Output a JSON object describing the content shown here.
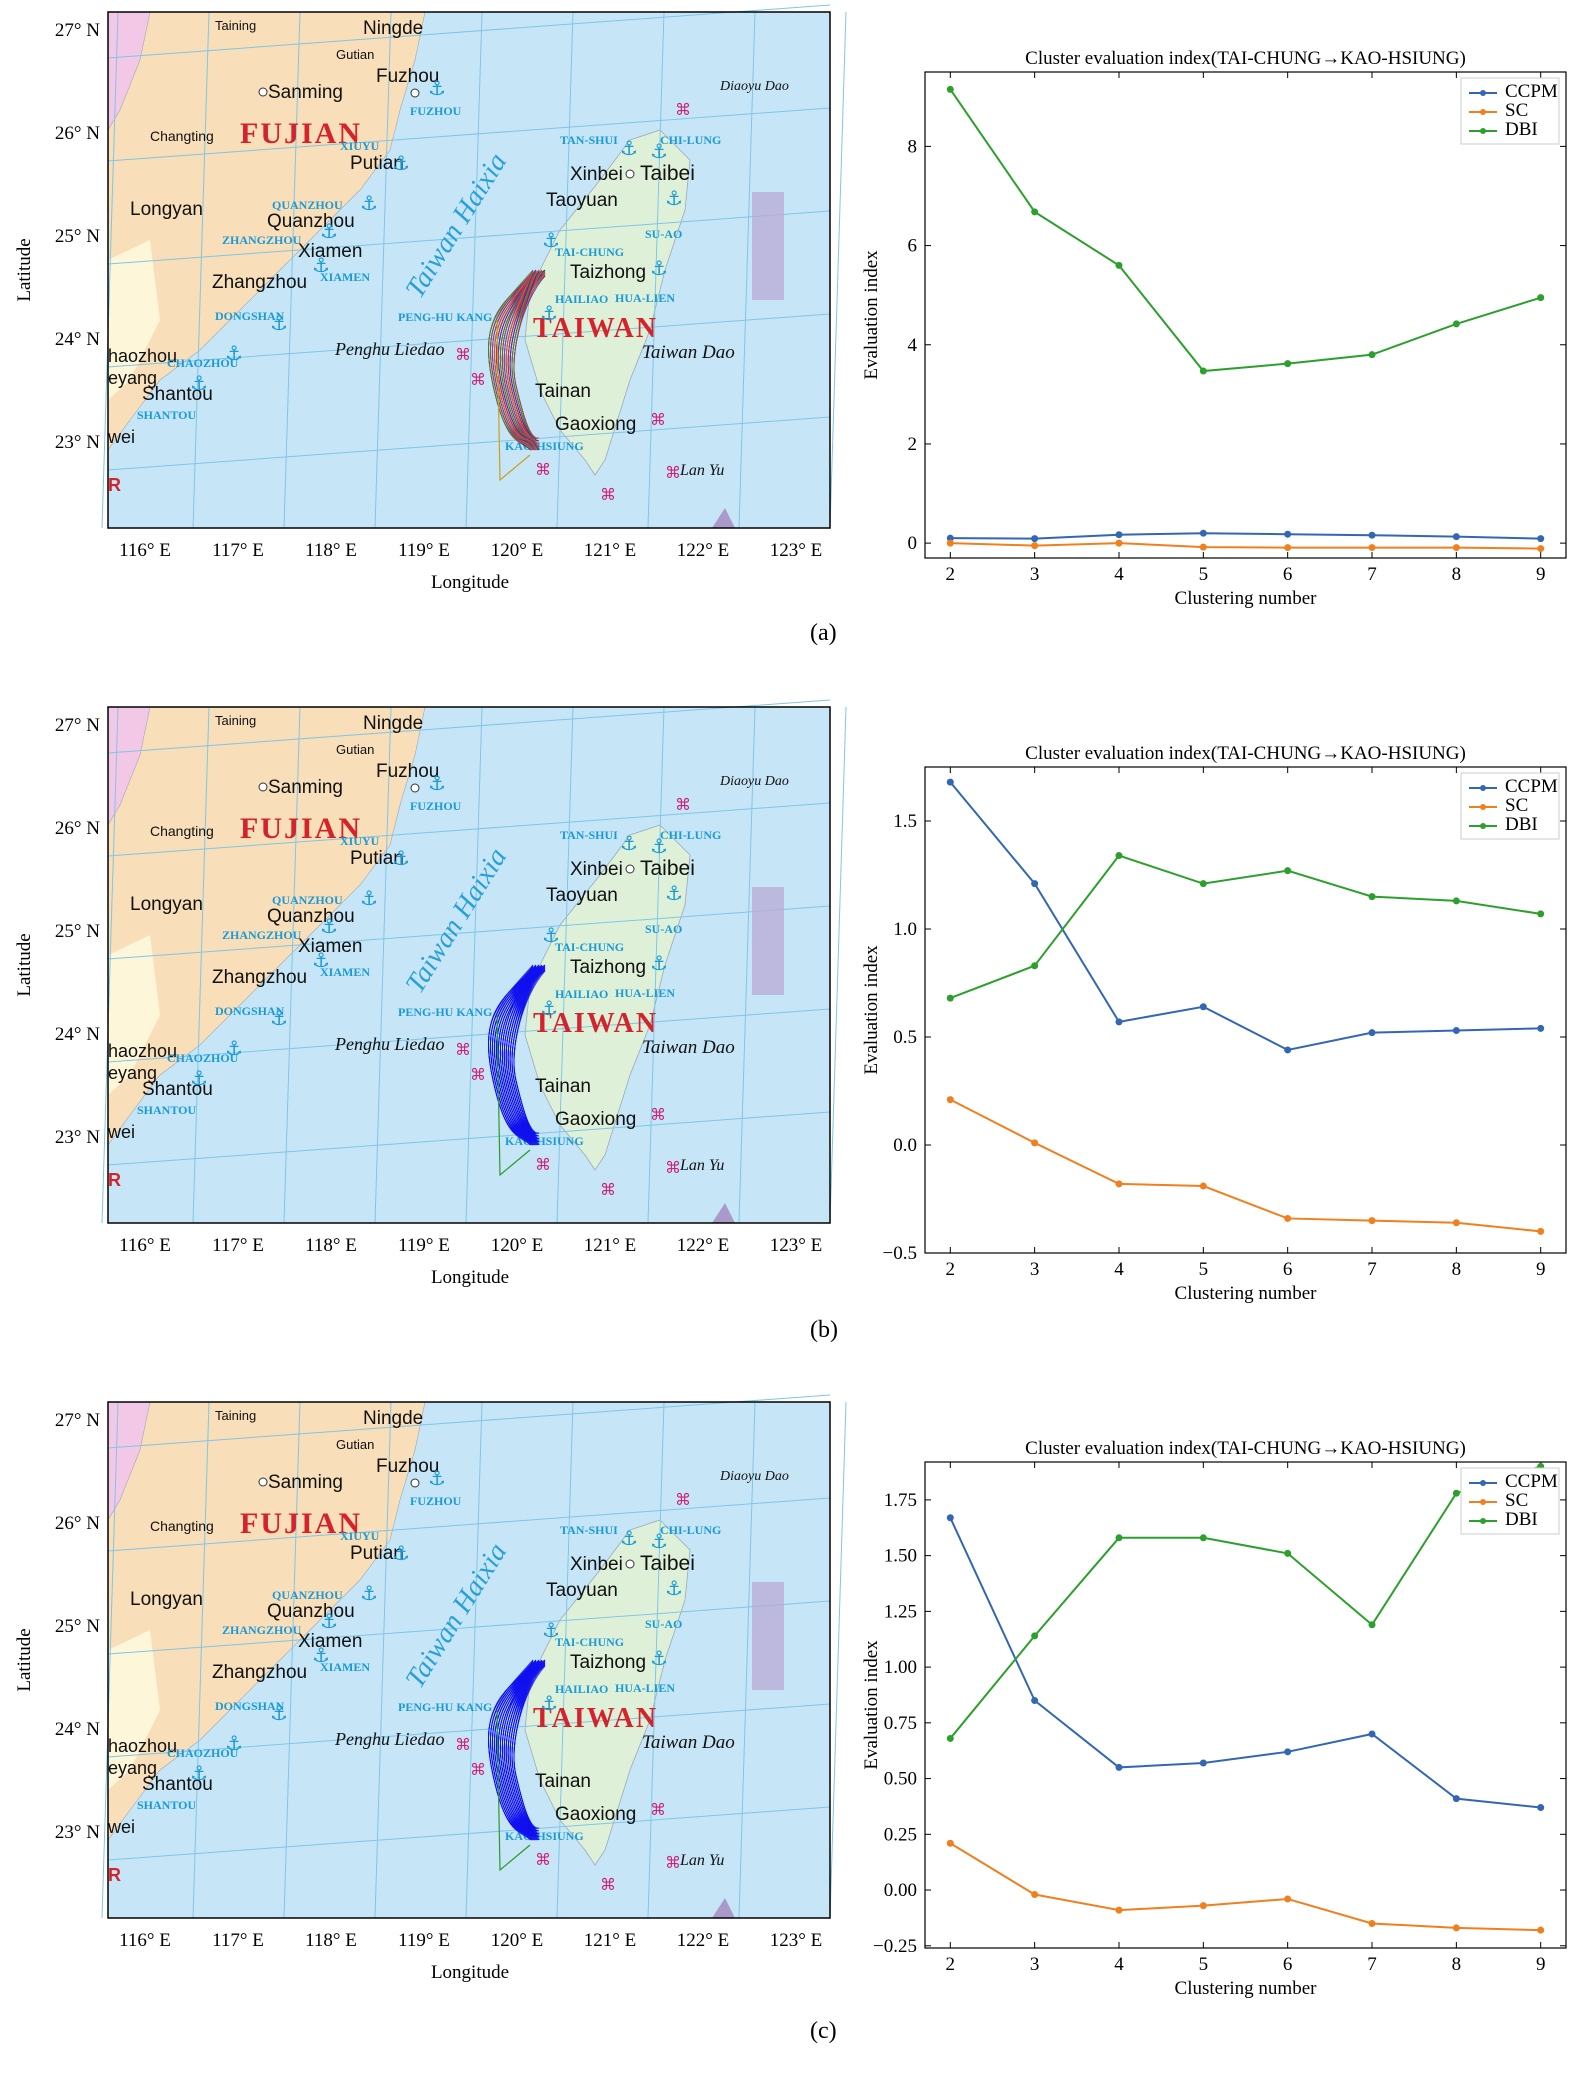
{
  "map": {
    "lon_ticks": [
      "116° E",
      "117° E",
      "118° E",
      "119° E",
      "120° E",
      "121° E",
      "122° E",
      "123° E"
    ],
    "lat_ticks": [
      "27° N",
      "26° N",
      "25° N",
      "24° N",
      "23° N"
    ],
    "xlabel": "Longitude",
    "ylabel": "Latitude",
    "province_fujian": "FUJIAN",
    "province_taiwan": "TAIWAN",
    "strait": "Taiwan Haixia",
    "cities": [
      "Taining",
      "Ningde",
      "Gutian",
      "Fuzhou",
      "Sanming",
      "Changting",
      "Putian",
      "Longyan",
      "Quanzhou",
      "Xiamen",
      "Zhangzhou",
      "haozhou",
      "eyang",
      "Shantou",
      "wei",
      "Xinbei",
      "Taibei",
      "Taoyuan",
      "Taizhong",
      "Tainan",
      "Gaoxiong",
      "R"
    ],
    "islands": [
      "Diaoyu Dao",
      "Penghu Liedao",
      "Taiwan Dao",
      "Lan Yu"
    ],
    "ports": [
      "FUZHOU",
      "XIUYU",
      "QUANZHOU",
      "ZHANGZHOU",
      "XIAMEN",
      "DONGSHAN",
      "CHAOZHOU",
      "SHANTOU",
      "TAN-SHUI",
      "CHI-LUNG",
      "SU-AO",
      "TAI-CHUNG",
      "HAILIAO",
      "HUA-LIEN",
      "PENG-HU KANG",
      "KAO-HSIUNG"
    ]
  },
  "colors": {
    "ccpm": "#3366b3",
    "sc": "#f07f1e",
    "dbi": "#2ca02c",
    "sea": "#c6e6f7",
    "land": "#f8deb9",
    "taiwan": "#dff0d8",
    "route_blue": "#1010ee"
  },
  "panels": [
    {
      "caption": "(a)"
    },
    {
      "caption": "(b)"
    },
    {
      "caption": "(c)"
    }
  ],
  "chart_data": [
    {
      "type": "line",
      "title": "Cluster evaluation index(TAI-CHUNG→KAO-HSIUNG)",
      "xlabel": "Clustering number",
      "ylabel": "Evaluation index",
      "x": [
        2,
        3,
        4,
        5,
        6,
        7,
        8,
        9
      ],
      "ylim": [
        -0.3,
        9.5
      ],
      "yticks": [
        "0",
        "2",
        "4",
        "6",
        "8"
      ],
      "ytick_values": [
        0,
        2,
        4,
        6,
        8
      ],
      "legend_position": "top-right",
      "series": [
        {
          "name": "CCPM",
          "values": [
            0.1,
            0.09,
            0.17,
            0.2,
            0.18,
            0.16,
            0.13,
            0.09
          ]
        },
        {
          "name": "SC",
          "values": [
            0.0,
            -0.05,
            0.0,
            -0.08,
            -0.09,
            -0.09,
            -0.09,
            -0.11
          ]
        },
        {
          "name": "DBI",
          "values": [
            9.15,
            6.68,
            5.6,
            3.47,
            3.62,
            3.8,
            4.42,
            4.95
          ]
        }
      ]
    },
    {
      "type": "line",
      "title": "Cluster evaluation index(TAI-CHUNG→KAO-HSIUNG)",
      "xlabel": "Clustering number",
      "ylabel": "Evaluation index",
      "x": [
        2,
        3,
        4,
        5,
        6,
        7,
        8,
        9
      ],
      "ylim": [
        -0.5,
        1.75
      ],
      "yticks": [
        "−0.5",
        "0.0",
        "0.5",
        "1.0",
        "1.5"
      ],
      "ytick_values": [
        -0.5,
        0.0,
        0.5,
        1.0,
        1.5
      ],
      "legend_position": "top-right",
      "series": [
        {
          "name": "CCPM",
          "values": [
            1.68,
            1.21,
            0.57,
            0.64,
            0.44,
            0.52,
            0.53,
            0.54
          ]
        },
        {
          "name": "SC",
          "values": [
            0.21,
            0.01,
            -0.18,
            -0.19,
            -0.34,
            -0.35,
            -0.36,
            -0.4
          ]
        },
        {
          "name": "DBI",
          "values": [
            0.68,
            0.83,
            1.34,
            1.21,
            1.27,
            1.15,
            1.13,
            1.07
          ]
        }
      ]
    },
    {
      "type": "line",
      "title": "Cluster evaluation index(TAI-CHUNG→KAO-HSIUNG)",
      "xlabel": "Clustering number",
      "ylabel": "Evaluation index",
      "x": [
        2,
        3,
        4,
        5,
        6,
        7,
        8,
        9
      ],
      "ylim": [
        -0.26,
        1.92
      ],
      "yticks": [
        "−0.25",
        "0.00",
        "0.25",
        "0.50",
        "0.75",
        "1.00",
        "1.25",
        "1.50",
        "1.75"
      ],
      "ytick_values": [
        -0.25,
        0.0,
        0.25,
        0.5,
        0.75,
        1.0,
        1.25,
        1.5,
        1.75
      ],
      "legend_position": "top-right",
      "series": [
        {
          "name": "CCPM",
          "values": [
            1.67,
            0.85,
            0.55,
            0.57,
            0.62,
            0.7,
            0.41,
            0.37
          ]
        },
        {
          "name": "SC",
          "values": [
            0.21,
            -0.02,
            -0.09,
            -0.07,
            -0.04,
            -0.15,
            -0.17,
            -0.18
          ]
        },
        {
          "name": "DBI",
          "values": [
            0.68,
            1.14,
            1.58,
            1.58,
            1.51,
            1.19,
            1.78,
            1.9
          ]
        }
      ]
    }
  ]
}
